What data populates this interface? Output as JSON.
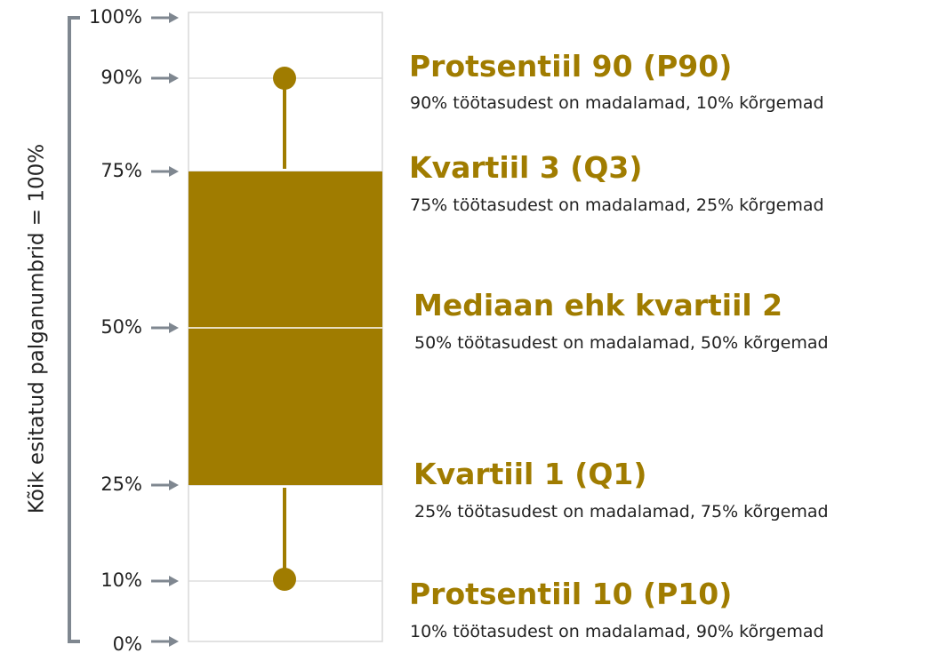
{
  "axis_label": "Kõik esitatud palganumbrid = 100%",
  "ticks": [
    "100%",
    "90%",
    "75%",
    "50%",
    "25%",
    "10%",
    "0%"
  ],
  "annotations": [
    {
      "title": "Protsentiil 90 (P90)",
      "description": "90% töötasudest on madalamad, 10% kõrgemad"
    },
    {
      "title": "Kvartiil 3 (Q3)",
      "description": "75% töötasudest on madalamad, 25% kõrgemad"
    },
    {
      "title": "Mediaan ehk kvartiil 2",
      "description": "50% töötasudest on madalamad, 50% kõrgemad"
    },
    {
      "title": "Kvartiil 1 (Q1)",
      "description": "25% töötasudest on madalamad, 75% kõrgemad"
    },
    {
      "title": "Protsentiil 10 (P10)",
      "description": "10% töötasudest on madalamad, 90% kõrgemad"
    }
  ]
}
